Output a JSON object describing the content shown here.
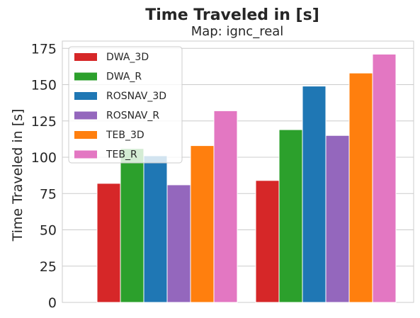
{
  "chart_data": {
    "type": "bar",
    "title": "Time Traveled in [s]",
    "subtitle": "Map: ignc_real",
    "xlabel": "",
    "ylabel": "Time Traveled in [s]",
    "ylim": [
      0,
      180
    ],
    "yticks": [
      0,
      25,
      50,
      75,
      100,
      125,
      150,
      175
    ],
    "grid": true,
    "legend_position": "top-left",
    "categories": [
      "",
      ""
    ],
    "series": [
      {
        "name": "DWA_3D",
        "color": "#d62728",
        "values": [
          82,
          84
        ]
      },
      {
        "name": "DWA_R",
        "color": "#2ca02c",
        "values": [
          106,
          119
        ]
      },
      {
        "name": "ROSNAV_3D",
        "color": "#1f77b4",
        "values": [
          101,
          149
        ]
      },
      {
        "name": "ROSNAV_R",
        "color": "#9467bd",
        "values": [
          81,
          115
        ]
      },
      {
        "name": "TEB_3D",
        "color": "#ff7f0e",
        "values": [
          108,
          158
        ]
      },
      {
        "name": "TEB_R",
        "color": "#e377c2",
        "values": [
          132,
          171
        ]
      }
    ]
  }
}
